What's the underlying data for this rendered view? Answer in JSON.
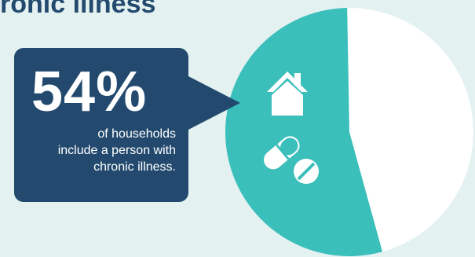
{
  "title": "ronic illness",
  "callout": {
    "value": "54%",
    "line1": "of households",
    "line2": "include a person with",
    "line3": "chronic illness."
  },
  "icons": [
    "house-icon",
    "pill-icon",
    "tablet-icon"
  ],
  "colors": {
    "background": "#e3f1f1",
    "callout": "#234a6e",
    "highlight": "#3bbfbb",
    "remainder": "#ffffff",
    "title": "#234a6e"
  },
  "chart_data": {
    "type": "pie",
    "slices": [
      {
        "label": "include a person with chronic illness",
        "value": 54,
        "color": "#3bbfbb"
      },
      {
        "label": "other households",
        "value": 46,
        "color": "#ffffff"
      }
    ],
    "unit": "%"
  }
}
